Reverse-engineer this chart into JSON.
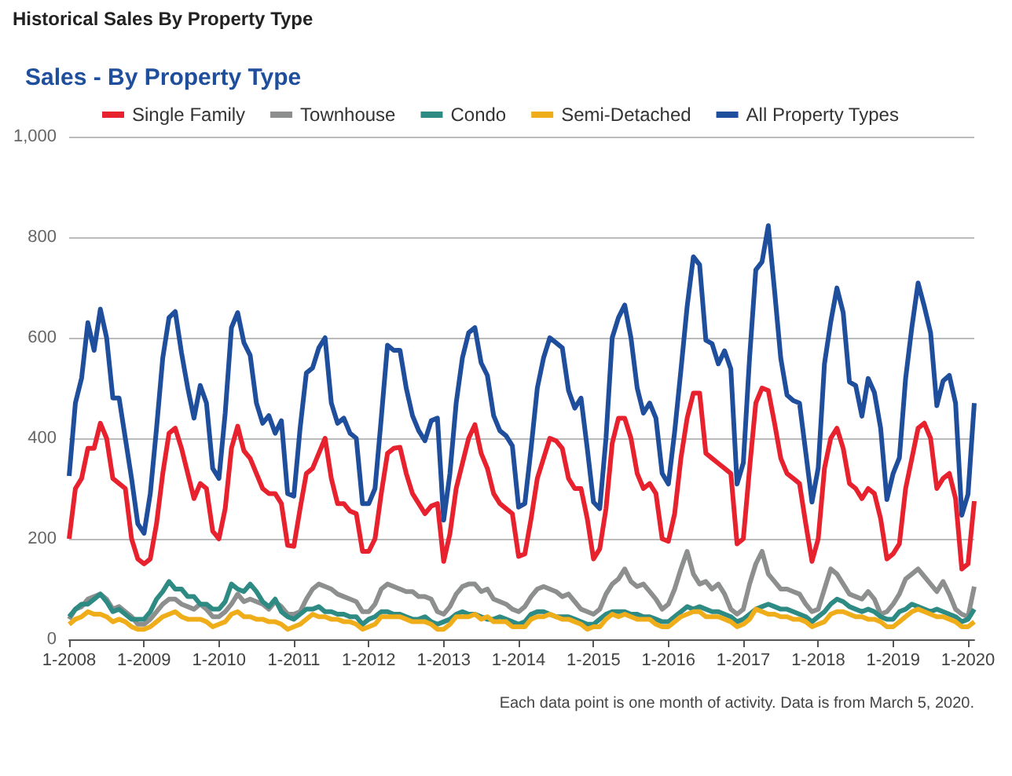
{
  "chart_data": {
    "type": "line",
    "title": "Historical Sales By Property Type",
    "subtitle": "Sales - By Property Type",
    "annotations": [
      "Each data point is one month of activity. Data is from March 5, 2020."
    ],
    "categories": [
      "1-2008",
      null,
      null,
      null,
      null,
      null,
      null,
      null,
      null,
      null,
      null,
      null,
      "1-2009",
      null,
      null,
      null,
      null,
      null,
      null,
      null,
      null,
      null,
      null,
      null,
      "1-2010",
      null,
      null,
      null,
      null,
      null,
      null,
      null,
      null,
      null,
      null,
      null,
      "1-2011",
      null,
      null,
      null,
      null,
      null,
      null,
      null,
      null,
      null,
      null,
      null,
      "1-2012",
      null,
      null,
      null,
      null,
      null,
      null,
      null,
      null,
      null,
      null,
      null,
      "1-2013",
      null,
      null,
      null,
      null,
      null,
      null,
      null,
      null,
      null,
      null,
      null,
      "1-2014",
      null,
      null,
      null,
      null,
      null,
      null,
      null,
      null,
      null,
      null,
      null,
      "1-2015",
      null,
      null,
      null,
      null,
      null,
      null,
      null,
      null,
      null,
      null,
      null,
      "1-2016",
      null,
      null,
      null,
      null,
      null,
      null,
      null,
      null,
      null,
      null,
      null,
      "1-2017",
      null,
      null,
      null,
      null,
      null,
      null,
      null,
      null,
      null,
      null,
      null,
      "1-2018",
      null,
      null,
      null,
      null,
      null,
      null,
      null,
      null,
      null,
      null,
      null,
      "1-2019",
      null,
      null,
      null,
      null,
      null,
      null,
      null,
      null,
      null,
      null,
      null,
      "1-2020",
      null
    ],
    "series": [
      {
        "name": "Single Family",
        "color": "#e8212e",
        "values": [
          200,
          300,
          320,
          380,
          380,
          430,
          400,
          320,
          310,
          300,
          200,
          160,
          150,
          160,
          230,
          330,
          410,
          420,
          380,
          330,
          280,
          310,
          300,
          215,
          200,
          260,
          380,
          424,
          375,
          360,
          330,
          300,
          290,
          290,
          270,
          187,
          185,
          260,
          330,
          340,
          370,
          400,
          320,
          270,
          270,
          255,
          250,
          175,
          175,
          200,
          290,
          370,
          380,
          382,
          330,
          290,
          270,
          250,
          265,
          270,
          155,
          210,
          300,
          350,
          400,
          427,
          370,
          340,
          290,
          270,
          260,
          250,
          165,
          170,
          240,
          320,
          360,
          400,
          395,
          380,
          320,
          300,
          300,
          240,
          160,
          180,
          260,
          390,
          440,
          440,
          400,
          330,
          300,
          310,
          290,
          200,
          195,
          250,
          360,
          440,
          490,
          490,
          370,
          360,
          350,
          340,
          330,
          190,
          200,
          340,
          470,
          500,
          495,
          430,
          360,
          330,
          320,
          310,
          230,
          155,
          200,
          340,
          400,
          420,
          380,
          310,
          300,
          280,
          300,
          290,
          240,
          160,
          170,
          190,
          300,
          360,
          420,
          430,
          400,
          300,
          320,
          330,
          280,
          140,
          150,
          275
        ]
      },
      {
        "name": "Townhouse",
        "color": "#8c8f8e",
        "values": [
          40,
          60,
          65,
          80,
          85,
          90,
          80,
          60,
          65,
          55,
          45,
          30,
          30,
          40,
          55,
          70,
          80,
          80,
          70,
          65,
          60,
          70,
          60,
          45,
          45,
          55,
          70,
          90,
          75,
          80,
          75,
          70,
          60,
          75,
          65,
          50,
          50,
          55,
          80,
          100,
          110,
          105,
          100,
          90,
          85,
          80,
          75,
          55,
          55,
          70,
          100,
          110,
          105,
          100,
          95,
          95,
          85,
          85,
          80,
          55,
          50,
          65,
          90,
          105,
          110,
          110,
          95,
          100,
          80,
          75,
          70,
          60,
          55,
          65,
          85,
          100,
          105,
          100,
          95,
          85,
          90,
          75,
          60,
          55,
          50,
          60,
          90,
          110,
          120,
          140,
          115,
          105,
          110,
          95,
          80,
          60,
          70,
          100,
          140,
          175,
          130,
          110,
          115,
          100,
          110,
          90,
          60,
          50,
          60,
          110,
          150,
          175,
          130,
          115,
          100,
          100,
          95,
          90,
          70,
          55,
          60,
          100,
          140,
          130,
          110,
          90,
          85,
          80,
          95,
          80,
          50,
          55,
          70,
          90,
          120,
          130,
          140,
          125,
          110,
          95,
          115,
          90,
          60,
          50,
          45,
          105
        ]
      },
      {
        "name": "Condo",
        "color": "#2e8b84",
        "values": [
          45,
          60,
          70,
          70,
          80,
          90,
          75,
          55,
          60,
          50,
          40,
          40,
          40,
          55,
          80,
          95,
          115,
          100,
          100,
          85,
          85,
          70,
          70,
          60,
          60,
          75,
          110,
          100,
          95,
          110,
          95,
          75,
          65,
          80,
          55,
          45,
          40,
          50,
          60,
          60,
          65,
          55,
          55,
          50,
          50,
          45,
          45,
          30,
          40,
          45,
          55,
          55,
          50,
          50,
          45,
          40,
          40,
          45,
          35,
          30,
          35,
          40,
          50,
          55,
          50,
          50,
          45,
          40,
          40,
          45,
          40,
          35,
          30,
          35,
          50,
          55,
          55,
          50,
          45,
          45,
          45,
          40,
          35,
          30,
          30,
          40,
          50,
          55,
          55,
          55,
          50,
          50,
          45,
          45,
          40,
          35,
          35,
          45,
          55,
          65,
          60,
          65,
          60,
          55,
          55,
          50,
          45,
          35,
          40,
          50,
          60,
          65,
          70,
          65,
          60,
          60,
          55,
          50,
          45,
          35,
          45,
          55,
          70,
          80,
          75,
          65,
          60,
          55,
          60,
          55,
          45,
          40,
          40,
          55,
          60,
          70,
          65,
          60,
          55,
          60,
          55,
          50,
          45,
          35,
          40,
          60
        ]
      },
      {
        "name": "Semi-Detached",
        "color": "#f0ad1a",
        "values": [
          30,
          40,
          45,
          55,
          50,
          50,
          45,
          35,
          40,
          35,
          25,
          20,
          20,
          25,
          35,
          45,
          50,
          55,
          45,
          40,
          40,
          40,
          35,
          25,
          30,
          35,
          50,
          55,
          45,
          45,
          40,
          40,
          35,
          35,
          30,
          20,
          25,
          30,
          40,
          50,
          45,
          45,
          40,
          40,
          35,
          35,
          30,
          20,
          25,
          30,
          45,
          45,
          45,
          45,
          40,
          35,
          35,
          35,
          30,
          20,
          20,
          30,
          45,
          45,
          45,
          50,
          40,
          45,
          35,
          35,
          35,
          25,
          25,
          25,
          40,
          45,
          45,
          50,
          45,
          40,
          40,
          35,
          30,
          20,
          25,
          25,
          40,
          50,
          45,
          50,
          45,
          40,
          40,
          40,
          30,
          25,
          25,
          35,
          45,
          50,
          55,
          55,
          45,
          45,
          45,
          40,
          35,
          25,
          30,
          40,
          60,
          55,
          50,
          50,
          45,
          45,
          40,
          40,
          35,
          25,
          30,
          35,
          50,
          55,
          55,
          50,
          45,
          45,
          40,
          40,
          35,
          25,
          25,
          35,
          45,
          55,
          60,
          55,
          50,
          45,
          45,
          40,
          35,
          25,
          25,
          35
        ]
      },
      {
        "name": "All Property Types",
        "color": "#1f4e9c",
        "values": [
          325,
          470,
          520,
          630,
          575,
          657,
          600,
          480,
          480,
          400,
          320,
          230,
          211,
          290,
          420,
          560,
          640,
          652,
          570,
          500,
          440,
          505,
          470,
          340,
          320,
          450,
          620,
          650,
          590,
          565,
          470,
          430,
          445,
          410,
          435,
          290,
          285,
          420,
          530,
          540,
          580,
          600,
          470,
          430,
          440,
          410,
          400,
          270,
          270,
          300,
          440,
          585,
          575,
          575,
          500,
          445,
          415,
          395,
          435,
          440,
          237,
          330,
          470,
          560,
          610,
          620,
          550,
          525,
          445,
          415,
          405,
          385,
          263,
          270,
          380,
          500,
          560,
          600,
          590,
          580,
          495,
          460,
          480,
          380,
          273,
          260,
          400,
          600,
          640,
          665,
          600,
          500,
          450,
          470,
          440,
          330,
          309,
          413,
          535,
          662,
          761,
          745,
          595,
          588,
          548,
          574,
          538,
          309,
          351,
          560,
          735,
          751,
          823,
          694,
          559,
          486,
          475,
          470,
          372,
          273,
          341,
          548,
          631,
          699,
          650,
          512,
          505,
          444,
          519,
          491,
          420,
          278,
          330,
          361,
          519,
          621,
          709,
          662,
          610,
          465,
          514,
          525,
          470,
          247,
          289,
          470
        ]
      }
    ],
    "ylim": [
      0,
      1000
    ],
    "yticks": [
      0,
      200,
      400,
      600,
      800,
      {
        "value": 1000,
        "label": "1,000"
      }
    ],
    "grid": "y",
    "legend": "top",
    "marker": "none"
  }
}
